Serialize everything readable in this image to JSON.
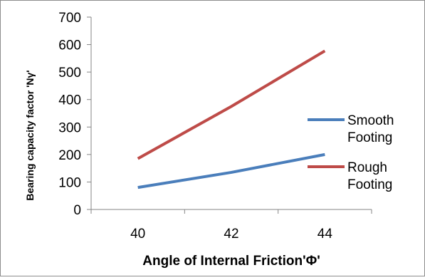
{
  "chart_data": {
    "type": "line",
    "title": "",
    "xlabel": "Angle of Internal Friction'Φ'",
    "ylabel": "Bearing capacity factor 'Nγ'",
    "x": [
      40,
      42,
      44
    ],
    "x_ticks": [
      "40",
      "42",
      "44"
    ],
    "xlim": [
      39,
      45
    ],
    "ylim": [
      0,
      700
    ],
    "y_ticks": [
      "0",
      "100",
      "200",
      "300",
      "400",
      "500",
      "600",
      "700"
    ],
    "grid": false,
    "legend_position": "right",
    "series": [
      {
        "name": "Smooth Footing",
        "legend_lines": [
          "Smooth",
          "Footing"
        ],
        "values": [
          80,
          135,
          200
        ],
        "color": "#4a7ebb"
      },
      {
        "name": "Rough Footing",
        "legend_lines": [
          "Rough",
          "Footing"
        ],
        "values": [
          185,
          375,
          577
        ],
        "color": "#be4b48"
      }
    ]
  }
}
